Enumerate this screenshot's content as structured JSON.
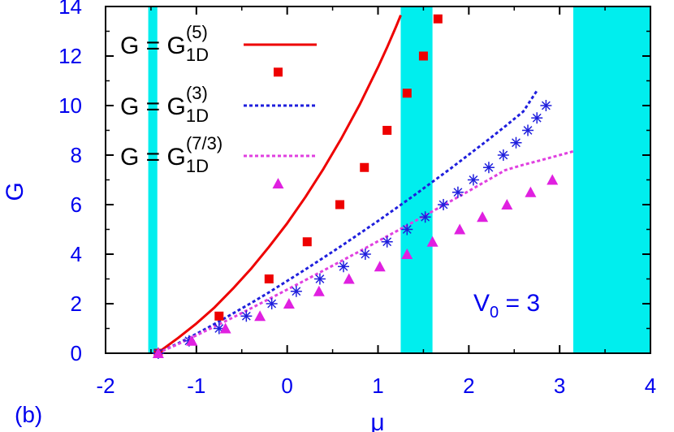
{
  "chart_data": {
    "type": "scatter",
    "panel_label": "(b)",
    "xlabel": "μ",
    "ylabel": "G",
    "xlim": [
      -2,
      4
    ],
    "ylim": [
      0,
      14
    ],
    "x_ticks": [
      "-2",
      "-1",
      "0",
      "1",
      "2",
      "3",
      "4"
    ],
    "y_ticks": [
      "0",
      "2",
      "4",
      "6",
      "8",
      "10",
      "12",
      "14"
    ],
    "annotation": {
      "main": "V",
      "sub": "0",
      "tail": " = 3"
    },
    "shaded_bands": [
      {
        "x0": -1.53,
        "x1": -1.43
      },
      {
        "x0": 1.25,
        "x1": 1.6
      },
      {
        "x0": 3.15,
        "x1": 4.0
      }
    ],
    "band_color": "#00eeee",
    "legend": [
      {
        "prefix": "G = G",
        "sub": "1D",
        "sup": "(5)",
        "line_color": "#ee0000",
        "dash": "solid",
        "marker": "square",
        "marker_color": "#ee0000"
      },
      {
        "prefix": "G = G",
        "sub": "1D",
        "sup": "(3)",
        "line_color": "#1f1fdd",
        "dash": "dotted",
        "marker": "asterisk",
        "marker_color": "#1f1fdd"
      },
      {
        "prefix": "G = G",
        "sub": "1D",
        "sup": "(7/3)",
        "line_color": "#e040e0",
        "dash": "dotted",
        "marker": "triangle",
        "marker_color": "#e020e0"
      }
    ],
    "curves": [
      {
        "name": "G = G_1D^(5)",
        "color": "#ee0000",
        "dash": "solid",
        "x": [
          -1.43,
          -1.2,
          -1.0,
          -0.8,
          -0.6,
          -0.4,
          -0.2,
          0.0,
          0.2,
          0.4,
          0.6,
          0.8,
          1.0,
          1.1,
          1.2,
          1.25
        ],
        "y": [
          0.0,
          0.62,
          1.2,
          1.85,
          2.6,
          3.4,
          4.3,
          5.25,
          6.3,
          7.45,
          8.7,
          10.05,
          11.55,
          12.35,
          13.2,
          13.65
        ]
      },
      {
        "name": "G = G_1D^(3)",
        "color": "#1f1fdd",
        "dash": "dotted",
        "x": [
          -1.43,
          -1.2,
          -1.0,
          -0.8,
          -0.6,
          -0.4,
          -0.2,
          0.0,
          0.2,
          0.4,
          0.6,
          0.8,
          1.0,
          1.2,
          1.4,
          1.6,
          1.8,
          2.0,
          2.2,
          2.4,
          2.6,
          2.75
        ],
        "y": [
          0.0,
          0.4,
          0.78,
          1.18,
          1.6,
          2.02,
          2.46,
          2.92,
          3.38,
          3.86,
          4.34,
          4.84,
          5.34,
          5.86,
          6.38,
          6.92,
          7.46,
          8.02,
          8.58,
          9.16,
          9.76,
          10.6
        ]
      },
      {
        "name": "G = G_1D^(7/3)",
        "color": "#e040e0",
        "dash": "dotted",
        "x": [
          -1.43,
          -1.2,
          -1.0,
          -0.8,
          -0.6,
          -0.4,
          -0.2,
          0.0,
          0.2,
          0.4,
          0.6,
          0.8,
          1.0,
          1.2,
          1.4,
          1.6,
          1.8,
          2.0,
          2.2,
          2.4,
          2.6,
          2.8,
          3.0,
          3.15
        ],
        "y": [
          0.0,
          0.37,
          0.72,
          1.08,
          1.44,
          1.81,
          2.19,
          2.57,
          2.95,
          3.34,
          3.73,
          4.12,
          4.52,
          4.92,
          5.32,
          5.73,
          6.14,
          6.55,
          6.97,
          7.39,
          7.61,
          7.8,
          8.0,
          8.15
        ]
      }
    ],
    "markers": [
      {
        "name": "squares",
        "shape": "square",
        "color": "#ee0000",
        "x": [
          -1.42,
          -0.75,
          -0.2,
          0.22,
          0.58,
          0.85,
          1.1,
          1.32,
          1.5,
          1.66
        ],
        "y": [
          0.0,
          1.5,
          3.0,
          4.5,
          6.0,
          7.5,
          9.0,
          10.5,
          12.0,
          13.5
        ]
      },
      {
        "name": "asterisks",
        "shape": "asterisk",
        "color": "#1f1fdd",
        "x": [
          -1.42,
          -1.08,
          -0.75,
          -0.45,
          -0.17,
          0.1,
          0.36,
          0.62,
          0.86,
          1.1,
          1.32,
          1.52,
          1.72,
          1.88,
          2.05,
          2.22,
          2.38,
          2.52,
          2.65,
          2.75,
          2.85
        ],
        "y": [
          0.0,
          0.5,
          1.0,
          1.5,
          2.0,
          2.5,
          3.0,
          3.5,
          4.0,
          4.5,
          5.0,
          5.5,
          6.0,
          6.5,
          7.0,
          7.5,
          8.0,
          8.5,
          9.0,
          9.5,
          10.0
        ]
      },
      {
        "name": "triangles",
        "shape": "triangle",
        "color": "#e020e0",
        "x": [
          -1.42,
          -1.05,
          -0.68,
          -0.3,
          0.02,
          0.35,
          0.68,
          1.02,
          1.32,
          1.6,
          1.9,
          2.15,
          2.42,
          2.68,
          2.92
        ],
        "y": [
          0.0,
          0.5,
          1.0,
          1.5,
          2.0,
          2.5,
          3.0,
          3.5,
          4.0,
          4.5,
          5.0,
          5.5,
          6.0,
          6.5,
          7.0
        ]
      },
      {
        "name": "legend-square",
        "shape": "square",
        "color": "#ee0000",
        "x": [
          -0.1
        ],
        "y": [
          11.35
        ]
      },
      {
        "name": "legend-triangle",
        "shape": "triangle",
        "color": "#e020e0",
        "x": [
          -0.1
        ],
        "y": [
          6.85
        ]
      }
    ]
  }
}
